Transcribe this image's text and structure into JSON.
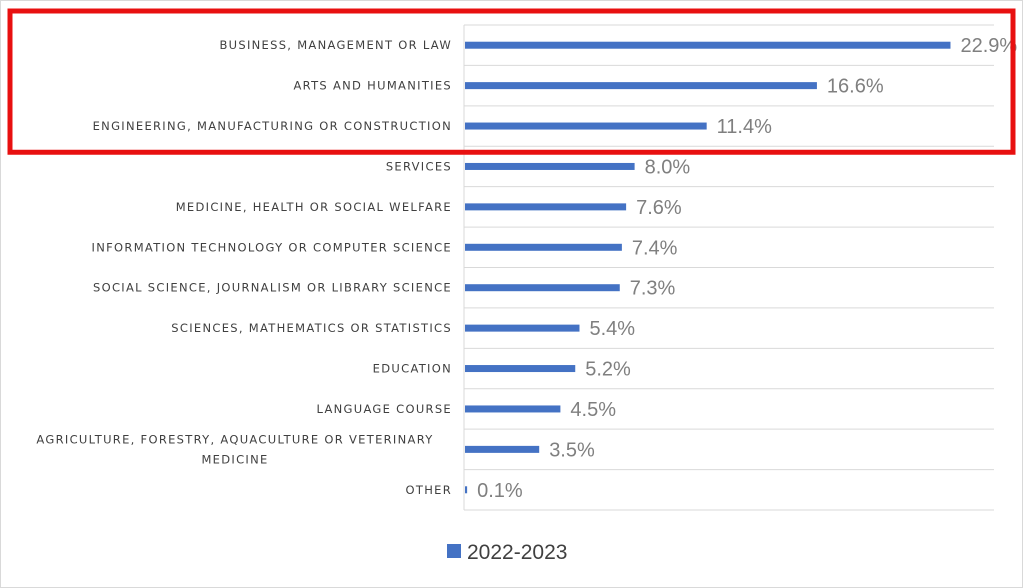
{
  "chart_data": {
    "type": "bar",
    "orientation": "horizontal",
    "categories": [
      "BUSINESS, MANAGEMENT OR LAW",
      "ARTS AND HUMANITIES",
      "ENGINEERING, MANUFACTURING OR CONSTRUCTION",
      "SERVICES",
      "MEDICINE, HEALTH OR SOCIAL WELFARE",
      "INFORMATION TECHNOLOGY OR COMPUTER SCIENCE",
      "SOCIAL SCIENCE, JOURNALISM OR LIBRARY SCIENCE",
      "SCIENCES, MATHEMATICS OR STATISTICS",
      "EDUCATION",
      "LANGUAGE COURSE",
      "AGRICULTURE, FORESTRY, AQUACULTURE OR VETERINARY MEDICINE",
      "OTHER"
    ],
    "series": [
      {
        "name": "2022-2023",
        "color": "#4472c4",
        "values": [
          22.9,
          16.6,
          11.4,
          8.0,
          7.6,
          7.4,
          7.3,
          5.4,
          5.2,
          4.5,
          3.5,
          0.1
        ],
        "labels": [
          "22.9%",
          "16.6%",
          "11.4%",
          "8.0%",
          "7.6%",
          "7.4%",
          "7.3%",
          "5.4%",
          "5.2%",
          "4.5%",
          "3.5%",
          "0.1%"
        ]
      }
    ],
    "xlim": [
      0,
      25
    ],
    "grid": true,
    "legend": "bottom",
    "highlight": {
      "categories": [
        "BUSINESS, MANAGEMENT OR LAW",
        "ARTS AND HUMANITIES",
        "ENGINEERING, MANUFACTURING OR CONSTRUCTION"
      ],
      "color": "#e81010"
    }
  }
}
